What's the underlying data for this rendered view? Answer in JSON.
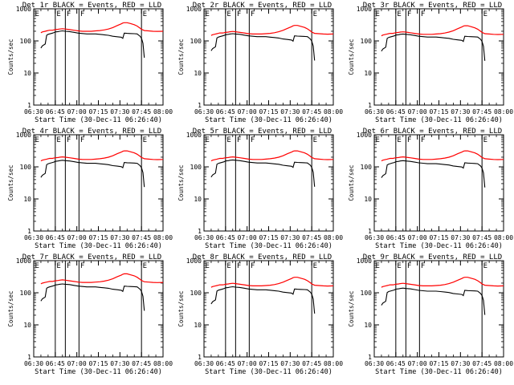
{
  "chart_data": [
    {
      "type": "line",
      "title": "Det 1r BLACK = Events, RED = LLD",
      "xlabel": "Start Time (30-Dec-11 06:26:40)",
      "ylabel": "Counts/sec",
      "xticks": [
        "06:30",
        "06:45",
        "07:00",
        "07:15",
        "07:30",
        "07:45",
        "08:00"
      ],
      "yticks": [
        "1",
        "10",
        "100",
        "1000"
      ],
      "ylim": [
        1,
        1000
      ],
      "xlim_minutes": [
        0,
        90
      ],
      "markers": [
        {
          "label": "E",
          "x_min": 15.0
        },
        {
          "label": "F",
          "x_min": 22.0
        },
        {
          "label": "F",
          "x_min": 31.5
        },
        {
          "label": "E",
          "x_min": 75.0
        }
      ],
      "series": [
        {
          "name": "Events",
          "color": "#000000",
          "scale": 1.0
        },
        {
          "name": "LLD",
          "color": "#ff0000",
          "scale": 1.0
        }
      ]
    },
    {
      "type": "line",
      "title": "Det 2r BLACK = Events, RED = LLD",
      "xlabel": "Start Time (30-Dec-11 06:26:40)",
      "ylabel": "Counts/sec",
      "xticks": [
        "06:30",
        "06:45",
        "07:00",
        "07:15",
        "07:30",
        "07:45",
        "08:00"
      ],
      "yticks": [
        "1",
        "10",
        "100",
        "1000"
      ],
      "ylim": [
        1,
        1000
      ],
      "xlim_minutes": [
        0,
        90
      ],
      "markers": [
        {
          "label": "E",
          "x_min": 15.0
        },
        {
          "label": "F",
          "x_min": 22.0
        },
        {
          "label": "F",
          "x_min": 31.5
        },
        {
          "label": "E",
          "x_min": 75.0
        }
      ],
      "series": [
        {
          "name": "Events",
          "color": "#000000",
          "scale": 0.82
        },
        {
          "name": "LLD",
          "color": "#ff0000",
          "scale": 0.82
        }
      ]
    },
    {
      "type": "line",
      "title": "Det 3r BLACK = Events, RED = LLD",
      "xlabel": "Start Time (30-Dec-11 06:26:40)",
      "ylabel": "Counts/sec",
      "xticks": [
        "06:30",
        "06:45",
        "07:00",
        "07:15",
        "07:30",
        "07:45",
        "08:00"
      ],
      "yticks": [
        "1",
        "10",
        "100",
        "1000"
      ],
      "ylim": [
        1,
        1000
      ],
      "xlim_minutes": [
        0,
        90
      ],
      "markers": [
        {
          "label": "E",
          "x_min": 15.0
        },
        {
          "label": "F",
          "x_min": 22.0
        },
        {
          "label": "F",
          "x_min": 31.5
        },
        {
          "label": "E",
          "x_min": 75.0
        }
      ],
      "series": [
        {
          "name": "Events",
          "color": "#000000",
          "scale": 0.8
        },
        {
          "name": "LLD",
          "color": "#ff0000",
          "scale": 0.8
        }
      ]
    },
    {
      "type": "line",
      "title": "Det 4r BLACK = Events, RED = LLD",
      "xlabel": "Start Time (30-Dec-11 06:26:40)",
      "ylabel": "Counts/sec",
      "xticks": [
        "06:30",
        "06:45",
        "07:00",
        "07:15",
        "07:30",
        "07:45",
        "08:00"
      ],
      "yticks": [
        "1",
        "10",
        "100",
        "1000"
      ],
      "ylim": [
        1,
        1000
      ],
      "xlim_minutes": [
        0,
        90
      ],
      "markers": [
        {
          "label": "E",
          "x_min": 15.0
        },
        {
          "label": "F",
          "x_min": 22.0
        },
        {
          "label": "F",
          "x_min": 31.5
        },
        {
          "label": "E",
          "x_min": 75.0
        }
      ],
      "series": [
        {
          "name": "Events",
          "color": "#000000",
          "scale": 0.78
        },
        {
          "name": "LLD",
          "color": "#ff0000",
          "scale": 0.85
        }
      ]
    },
    {
      "type": "line",
      "title": "Det 5r BLACK = Events, RED = LLD",
      "xlabel": "Start Time (30-Dec-11 06:26:40)",
      "ylabel": "Counts/sec",
      "xticks": [
        "06:30",
        "06:45",
        "07:00",
        "07:15",
        "07:30",
        "07:45",
        "08:00"
      ],
      "yticks": [
        "1",
        "10",
        "100",
        "1000"
      ],
      "ylim": [
        1,
        1000
      ],
      "xlim_minutes": [
        0,
        90
      ],
      "markers": [
        {
          "label": "E",
          "x_min": 15.0
        },
        {
          "label": "F",
          "x_min": 22.0
        },
        {
          "label": "F",
          "x_min": 31.5
        },
        {
          "label": "E",
          "x_min": 75.0
        }
      ],
      "series": [
        {
          "name": "Events",
          "color": "#000000",
          "scale": 0.8
        },
        {
          "name": "LLD",
          "color": "#ff0000",
          "scale": 0.85
        }
      ]
    },
    {
      "type": "line",
      "title": "Det 6r BLACK = Events, RED = LLD",
      "xlabel": "Start Time (30-Dec-11 06:26:40)",
      "ylabel": "Counts/sec",
      "xticks": [
        "06:30",
        "06:45",
        "07:00",
        "07:15",
        "07:30",
        "07:45",
        "08:00"
      ],
      "yticks": [
        "1",
        "10",
        "100",
        "1000"
      ],
      "ylim": [
        1,
        1000
      ],
      "xlim_minutes": [
        0,
        90
      ],
      "markers": [
        {
          "label": "E",
          "x_min": 15.0
        },
        {
          "label": "F",
          "x_min": 22.0
        },
        {
          "label": "F",
          "x_min": 31.5
        },
        {
          "label": "E",
          "x_min": 75.0
        }
      ],
      "series": [
        {
          "name": "Events",
          "color": "#000000",
          "scale": 0.76
        },
        {
          "name": "LLD",
          "color": "#ff0000",
          "scale": 0.85
        }
      ]
    },
    {
      "type": "line",
      "title": "Det 7r BLACK = Events, RED = LLD",
      "xlabel": "Start Time (30-Dec-11 06:26:40)",
      "ylabel": "Counts/sec",
      "xticks": [
        "06:30",
        "06:45",
        "07:00",
        "07:15",
        "07:30",
        "07:45",
        "08:00"
      ],
      "yticks": [
        "1",
        "10",
        "100",
        "1000"
      ],
      "ylim": [
        1,
        1000
      ],
      "xlim_minutes": [
        0,
        90
      ],
      "markers": [
        {
          "label": "E",
          "x_min": 15.0
        },
        {
          "label": "F",
          "x_min": 22.0
        },
        {
          "label": "F",
          "x_min": 31.5
        },
        {
          "label": "E",
          "x_min": 75.0
        }
      ],
      "series": [
        {
          "name": "Events",
          "color": "#000000",
          "scale": 0.92
        },
        {
          "name": "LLD",
          "color": "#ff0000",
          "scale": 1.05
        }
      ]
    },
    {
      "type": "line",
      "title": "Det 8r BLACK = Events, RED = LLD",
      "xlabel": "Start Time (30-Dec-11 06:26:40)",
      "ylabel": "Counts/sec",
      "xticks": [
        "06:30",
        "06:45",
        "07:00",
        "07:15",
        "07:30",
        "07:45",
        "08:00"
      ],
      "yticks": [
        "1",
        "10",
        "100",
        "1000"
      ],
      "ylim": [
        1,
        1000
      ],
      "xlim_minutes": [
        0,
        90
      ],
      "markers": [
        {
          "label": "E",
          "x_min": 15.0
        },
        {
          "label": "F",
          "x_min": 22.0
        },
        {
          "label": "F",
          "x_min": 31.5
        },
        {
          "label": "E",
          "x_min": 75.0
        }
      ],
      "series": [
        {
          "name": "Events",
          "color": "#000000",
          "scale": 0.75
        },
        {
          "name": "LLD",
          "color": "#ff0000",
          "scale": 0.82
        }
      ]
    },
    {
      "type": "line",
      "title": "Det 9r BLACK = Events, RED = LLD",
      "xlabel": "Start Time (30-Dec-11 06:26:40)",
      "ylabel": "Counts/sec",
      "xticks": [
        "06:30",
        "06:45",
        "07:00",
        "07:15",
        "07:30",
        "07:45",
        "08:00"
      ],
      "yticks": [
        "1",
        "10",
        "100",
        "1000"
      ],
      "ylim": [
        1,
        1000
      ],
      "xlim_minutes": [
        0,
        90
      ],
      "markers": [
        {
          "label": "E",
          "x_min": 15.0
        },
        {
          "label": "F",
          "x_min": 22.0
        },
        {
          "label": "F",
          "x_min": 31.5
        },
        {
          "label": "E",
          "x_min": 75.0
        }
      ],
      "series": [
        {
          "name": "Events",
          "color": "#000000",
          "scale": 0.68
        },
        {
          "name": "LLD",
          "color": "#ff0000",
          "scale": 0.82
        }
      ]
    }
  ],
  "baseline": {
    "minutes": [
      5,
      6,
      8,
      9,
      10,
      11,
      12,
      13,
      14,
      15,
      17,
      18,
      20,
      22,
      25,
      28,
      31,
      34,
      37,
      40,
      43,
      46,
      49,
      52,
      55,
      58,
      61,
      62,
      63,
      65,
      67,
      70,
      72,
      74,
      75,
      76,
      77
    ],
    "events": [
      60,
      70,
      80,
      150,
      160,
      165,
      170,
      175,
      180,
      190,
      195,
      200,
      205,
      200,
      195,
      185,
      175,
      170,
      165,
      165,
      165,
      160,
      155,
      150,
      140,
      135,
      130,
      120,
      175,
      172,
      170,
      168,
      165,
      140,
      120,
      85,
      30
    ],
    "lld": [
      180,
      190,
      200,
      205,
      210,
      215,
      215,
      215,
      220,
      225,
      230,
      235,
      240,
      235,
      225,
      215,
      205,
      200,
      200,
      200,
      205,
      210,
      220,
      235,
      260,
      300,
      340,
      360,
      370,
      370,
      350,
      320,
      290,
      250,
      230,
      220,
      210
    ],
    "lld_tail_minutes": [
      77,
      80,
      83,
      86,
      90
    ],
    "lld_tail": [
      210,
      205,
      200,
      198,
      200
    ]
  }
}
